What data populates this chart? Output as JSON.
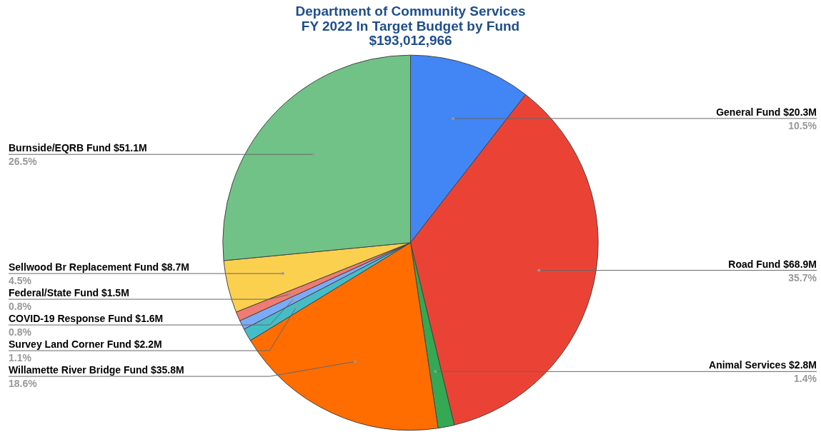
{
  "chart_data": {
    "type": "pie",
    "title": "Department of Community Services\nFY 2022 In Target Budget by Fund\n$193,012,966",
    "categories": [
      "General Fund $20.3M",
      "Road Fund $68.9M",
      "Animal Services $2.8M",
      "Willamette River Bridge Fund $35.8M",
      "Survey Land Corner Fund $2.2M",
      "COVID-19 Response Fund $1.6M",
      "Federal/State Fund $1.5M",
      "Sellwood Br Replacement Fund $8.7M",
      "Burnside/EQRB Fund $51.1M"
    ],
    "values": [
      10.5,
      35.7,
      1.4,
      18.6,
      1.1,
      0.8,
      0.8,
      4.5,
      26.5
    ],
    "value_labels": [
      "10.5%",
      "35.7%",
      "1.4%",
      "18.6%",
      "1.1%",
      "0.8%",
      "0.8%",
      "4.5%",
      "26.5%"
    ],
    "colors": [
      "#4285f4",
      "#ea4335",
      "#34a853",
      "#ff6d01",
      "#46bdc6",
      "#7baaf7",
      "#f07b72",
      "#fcd04f",
      "#71c287"
    ],
    "legend": false
  }
}
